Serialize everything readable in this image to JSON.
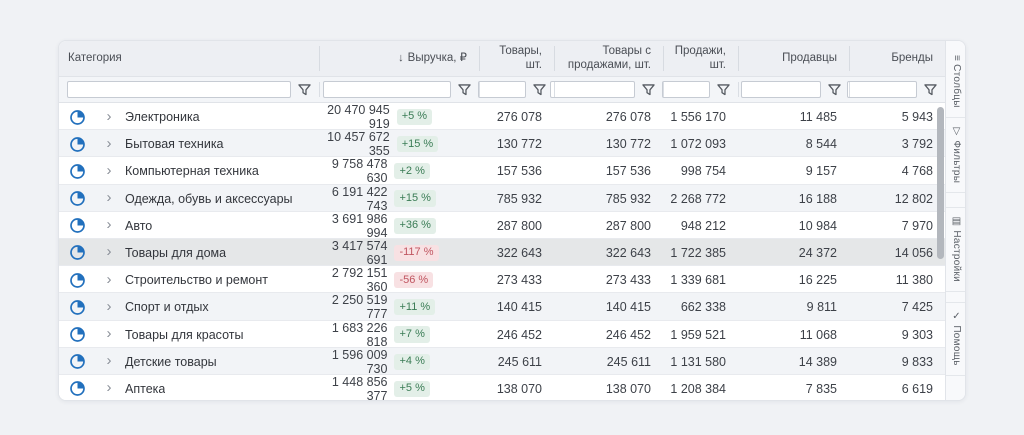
{
  "colors": {
    "accent_blue": "#2270bd",
    "positive_text": "#3a7c55",
    "positive_bg": "#e3efe8",
    "negative_text": "#c05560",
    "negative_bg": "#f8e1e3",
    "page_bg": "#f0f2f5",
    "header_bg": "#edeff3",
    "highlight_row_bg": "#e5e7e8"
  },
  "columns": [
    {
      "label": "Категория",
      "align": "left"
    },
    {
      "label": "Выручка, ₽",
      "sort": "↓"
    },
    {
      "label": "Товары, шт."
    },
    {
      "label": "Товары с продажами, шт."
    },
    {
      "label": "Продажи, шт."
    },
    {
      "label": "Продавцы"
    },
    {
      "label": "Бренды"
    }
  ],
  "filters": {
    "placeholder": "",
    "value": ""
  },
  "rows": [
    {
      "category": "Электроника",
      "revenue": "20 470 945 919",
      "delta": "+5 %",
      "trend": "up",
      "values": [
        "276 078",
        "276 078",
        "1 556 170",
        "11 485",
        "5 943"
      ],
      "highlighted": false
    },
    {
      "category": "Бытовая техника",
      "revenue": "10 457 672 355",
      "delta": "+15 %",
      "trend": "up",
      "values": [
        "130 772",
        "130 772",
        "1 072 093",
        "8 544",
        "3 792"
      ],
      "highlighted": false
    },
    {
      "category": "Компьютерная техника",
      "revenue": "9 758 478 630",
      "delta": "+2 %",
      "trend": "up",
      "values": [
        "157 536",
        "157 536",
        "998 754",
        "9 157",
        "4 768"
      ],
      "highlighted": false
    },
    {
      "category": "Одежда, обувь и аксессуары",
      "revenue": "6 191 422 743",
      "delta": "+15 %",
      "trend": "up",
      "values": [
        "785 932",
        "785 932",
        "2 268 772",
        "16 188",
        "12 802"
      ],
      "highlighted": false
    },
    {
      "category": "Авто",
      "revenue": "3 691 986 994",
      "delta": "+36 %",
      "trend": "up",
      "values": [
        "287 800",
        "287 800",
        "948 212",
        "10 984",
        "7 970"
      ],
      "highlighted": false
    },
    {
      "category": "Товары для дома",
      "revenue": "3 417 574 691",
      "delta": "-117 %",
      "trend": "down",
      "values": [
        "322 643",
        "322 643",
        "1 722 385",
        "24 372",
        "14 056"
      ],
      "highlighted": true
    },
    {
      "category": "Строительство и ремонт",
      "revenue": "2 792 151 360",
      "delta": "-56 %",
      "trend": "down",
      "values": [
        "273 433",
        "273 433",
        "1 339 681",
        "16 225",
        "11 380"
      ],
      "highlighted": false
    },
    {
      "category": "Спорт и отдых",
      "revenue": "2 250 519 777",
      "delta": "+11 %",
      "trend": "up",
      "values": [
        "140 415",
        "140 415",
        "662 338",
        "9 811",
        "7 425"
      ],
      "highlighted": false
    },
    {
      "category": "Товары для красоты",
      "revenue": "1 683 226 818",
      "delta": "+7 %",
      "trend": "up",
      "values": [
        "246 452",
        "246 452",
        "1 959 521",
        "11 068",
        "9 303"
      ],
      "highlighted": false
    },
    {
      "category": "Детские товары",
      "revenue": "1 596 009 730",
      "delta": "+4 %",
      "trend": "up",
      "values": [
        "245 611",
        "245 611",
        "1 131 580",
        "14 389",
        "9 833"
      ],
      "highlighted": false
    },
    {
      "category": "Аптека",
      "revenue": "1 448 856 377",
      "delta": "+5 %",
      "trend": "up",
      "values": [
        "138 070",
        "138 070",
        "1 208 384",
        "7 835",
        "6 619"
      ],
      "highlighted": false
    }
  ],
  "side_tabs": [
    {
      "label": "Столбцы",
      "icon": "columns-icon"
    },
    {
      "label": "Фильтры",
      "icon": "filter-icon"
    },
    {
      "label": "Настройки",
      "icon": "settings-icon"
    },
    {
      "label": "Помощь",
      "icon": "help-icon"
    }
  ]
}
